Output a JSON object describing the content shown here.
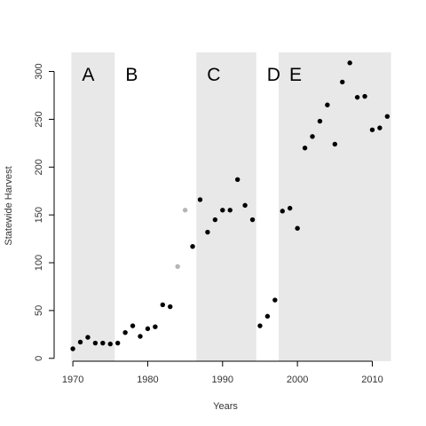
{
  "chart_data": {
    "type": "scatter",
    "xlabel": "Years",
    "ylabel": "Statewide Harvest",
    "xlim": [
      1967.5,
      2013.5
    ],
    "ylim": [
      -3,
      320
    ],
    "x_ticks": [
      1970,
      1980,
      1990,
      2000,
      2010
    ],
    "y_ticks": [
      0,
      50,
      100,
      150,
      200,
      250,
      300
    ],
    "grid": false,
    "legend": "none",
    "colors": {
      "shade": "#e8e8e8",
      "point": "#000000",
      "point_muted": "#b5b5b5",
      "axis": "#000000"
    },
    "regions": [
      {
        "label": "A",
        "start": 1969.8,
        "end": 1975.6,
        "shaded": true
      },
      {
        "label": "B",
        "start": 1975.6,
        "end": 1986.5,
        "shaded": false
      },
      {
        "label": "C",
        "start": 1986.5,
        "end": 1994.5,
        "shaded": true
      },
      {
        "label": "D",
        "start": 1994.5,
        "end": 1997.5,
        "shaded": false
      },
      {
        "label": "E",
        "start": 1997.5,
        "end": 2012.5,
        "shaded": true
      }
    ],
    "points": [
      {
        "x": 1970,
        "y": 10
      },
      {
        "x": 1971,
        "y": 17
      },
      {
        "x": 1972,
        "y": 22
      },
      {
        "x": 1973,
        "y": 16
      },
      {
        "x": 1974,
        "y": 16
      },
      {
        "x": 1975,
        "y": 15
      },
      {
        "x": 1976,
        "y": 16
      },
      {
        "x": 1977,
        "y": 27
      },
      {
        "x": 1978,
        "y": 34
      },
      {
        "x": 1979,
        "y": 23
      },
      {
        "x": 1980,
        "y": 31
      },
      {
        "x": 1981,
        "y": 33
      },
      {
        "x": 1982,
        "y": 56
      },
      {
        "x": 1983,
        "y": 54
      },
      {
        "x": 1984,
        "y": 96,
        "muted": true
      },
      {
        "x": 1985,
        "y": 155,
        "muted": true
      },
      {
        "x": 1986,
        "y": 117
      },
      {
        "x": 1987,
        "y": 166
      },
      {
        "x": 1988,
        "y": 132
      },
      {
        "x": 1989,
        "y": 145
      },
      {
        "x": 1990,
        "y": 155
      },
      {
        "x": 1991,
        "y": 155
      },
      {
        "x": 1992,
        "y": 187
      },
      {
        "x": 1993,
        "y": 160
      },
      {
        "x": 1994,
        "y": 145
      },
      {
        "x": 1995,
        "y": 34
      },
      {
        "x": 1996,
        "y": 44
      },
      {
        "x": 1997,
        "y": 61
      },
      {
        "x": 1998,
        "y": 154
      },
      {
        "x": 1999,
        "y": 157
      },
      {
        "x": 2000,
        "y": 136
      },
      {
        "x": 2001,
        "y": 220
      },
      {
        "x": 2002,
        "y": 232
      },
      {
        "x": 2003,
        "y": 248
      },
      {
        "x": 2004,
        "y": 265
      },
      {
        "x": 2005,
        "y": 224
      },
      {
        "x": 2006,
        "y": 289
      },
      {
        "x": 2007,
        "y": 309
      },
      {
        "x": 2008,
        "y": 273
      },
      {
        "x": 2009,
        "y": 274
      },
      {
        "x": 2010,
        "y": 239
      },
      {
        "x": 2011,
        "y": 241
      },
      {
        "x": 2012,
        "y": 253
      }
    ]
  }
}
